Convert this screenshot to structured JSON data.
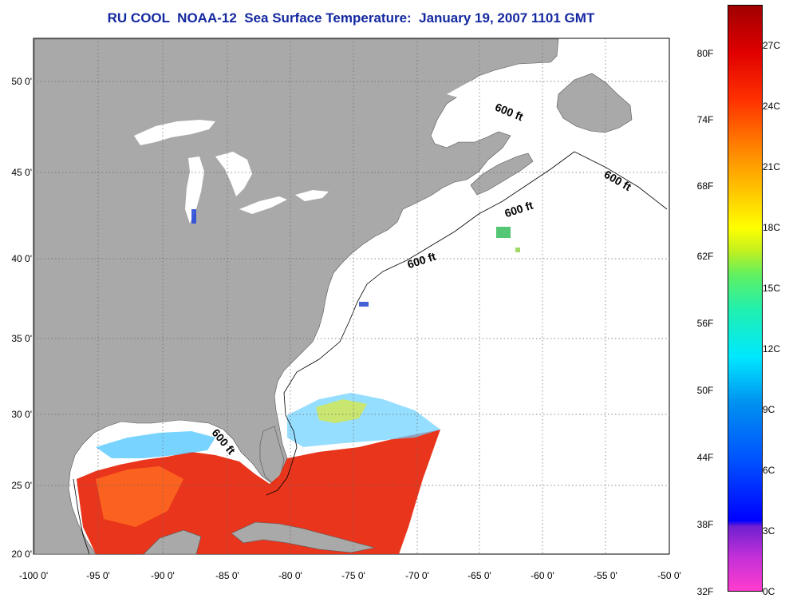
{
  "title": "RU COOL  NOAA-12  Sea Surface Temperature:  January 19, 2007 1101 GMT",
  "lat_labels": [
    "50 0'",
    "45 0'",
    "40 0'",
    "35 0'",
    "30 0'",
    "25 0'",
    "20 0'"
  ],
  "lon_labels": [
    "-100 0'",
    "-95 0'",
    "-90 0'",
    "-85 0'",
    "-80 0'",
    "-75 0'",
    "-70 0'",
    "-65 0'",
    "-60 0'",
    "-55 0'",
    "-50 0'"
  ],
  "colorbar": {
    "fahrenheit": [
      "80F",
      "74F",
      "68F",
      "62F",
      "56F",
      "50F",
      "44F",
      "38F",
      "32F"
    ],
    "celsius": [
      "27C",
      "24C",
      "21C",
      "18C",
      "15C",
      "12C",
      "9C",
      "6C",
      "3C",
      "0C"
    ]
  },
  "contour_label": "600 ft",
  "colors": {
    "land": "#a9a9a9",
    "ocean": "#ffffff",
    "title": "#1428a0"
  }
}
